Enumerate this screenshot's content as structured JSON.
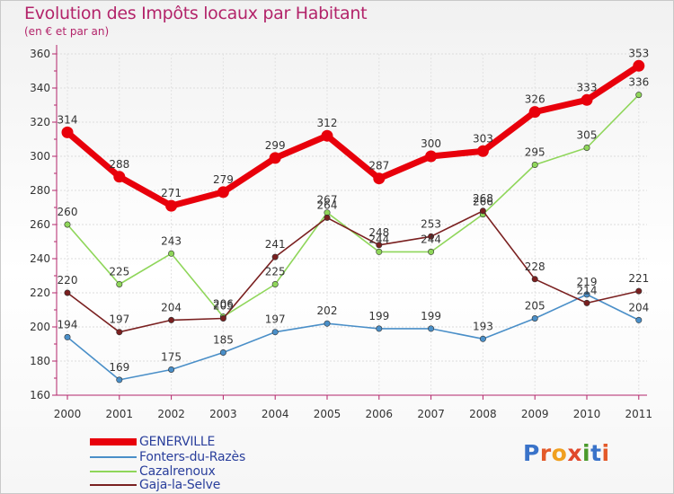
{
  "header": {
    "title": "Evolution des Impôts locaux par Habitant",
    "subtitle": "(en € et par an)"
  },
  "logo": {
    "text": "Proxiti"
  },
  "colors": {
    "title": "#b3246a",
    "axis": "#b3246a",
    "legend_text": "#2a3f9c"
  },
  "chart_data": {
    "type": "line",
    "title": "Evolution des Impôts locaux par Habitant",
    "subtitle": "(en € et par an)",
    "x": [
      "2000",
      "2001",
      "2002",
      "2003",
      "2004",
      "2005",
      "2006",
      "2007",
      "2008",
      "2009",
      "2010",
      "2011"
    ],
    "ylim": [
      160,
      360
    ],
    "yticks": [
      160,
      180,
      200,
      220,
      240,
      260,
      280,
      300,
      320,
      340,
      360
    ],
    "grid": true,
    "legend_position": "bottom-left",
    "series": [
      {
        "name": "GENERVILLE",
        "color": "#e8000b",
        "values": [
          314,
          288,
          271,
          279,
          299,
          312,
          287,
          300,
          303,
          326,
          333,
          353
        ]
      },
      {
        "name": "Fonters-du-Razès",
        "color": "#4a8fc8",
        "values": [
          194,
          169,
          175,
          185,
          197,
          202,
          199,
          199,
          193,
          205,
          219,
          204
        ]
      },
      {
        "name": "Cazalrenoux",
        "color": "#8fd65a",
        "values": [
          260,
          225,
          243,
          206,
          225,
          267,
          244,
          244,
          266,
          295,
          305,
          336
        ]
      },
      {
        "name": "Gaja-la-Selve",
        "color": "#7a2020",
        "values": [
          220,
          197,
          204,
          205,
          241,
          264,
          248,
          253,
          268,
          228,
          214,
          221
        ]
      }
    ]
  }
}
